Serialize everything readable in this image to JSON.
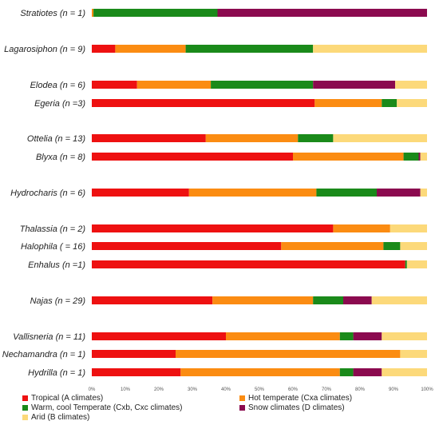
{
  "chart_data": {
    "type": "bar",
    "orientation": "horizontal",
    "stacked": true,
    "categories": [
      "Stratiotes (n = 1)",
      "Lagarosiphon (n = 9)",
      "Elodea (n = 6)",
      "Egeria (n =3)",
      "Ottelia (n = 13)",
      "Blyxa (n = 8)",
      "Hydrocharis (n = 6)",
      "Thalassia (n = 2)",
      "Halophila ( = 16)",
      "Enhalus (n =1)",
      "Najas (n = 29)",
      "Vallisneria (n = 11)",
      "Nechamandra (n = 1)",
      "Hydrilla (n = 1)"
    ],
    "series": [
      {
        "name": "Tropical (A climates)",
        "color": "#ee1111",
        "values": [
          0,
          7,
          13.5,
          66.5,
          34,
          60,
          29,
          72,
          56.5,
          93.5,
          36,
          40,
          25,
          26.5
        ]
      },
      {
        "name": "Hot temperate (Cxa climates)",
        "color": "#fb8c12",
        "values": [
          0.5,
          21,
          22,
          20,
          27.5,
          33,
          38,
          17,
          30.5,
          0,
          30,
          34,
          67,
          47.5
        ]
      },
      {
        "name": "Warm, cool Temperate (Cxb, Cxc climates)",
        "color": "#1a8a1a",
        "values": [
          37,
          38,
          30.5,
          4.5,
          10.5,
          4.5,
          18,
          0,
          5,
          0.5,
          9,
          4,
          0,
          4
        ]
      },
      {
        "name": "Snow climates (D climates)",
        "color": "#8b0a4f",
        "values": [
          62.5,
          0,
          24.5,
          0,
          0,
          0.5,
          13,
          0,
          0,
          0,
          8.5,
          8.5,
          0,
          8.5
        ]
      },
      {
        "name": "Arid (B climates)",
        "color": "#fcd97a",
        "values": [
          0,
          34,
          9.5,
          9,
          28,
          2,
          2,
          11,
          8,
          6,
          16.5,
          13.5,
          8,
          13.5
        ]
      }
    ],
    "xlim": [
      0,
      100
    ],
    "xticks": [
      "0%",
      "10%",
      "20%",
      "30%",
      "40%",
      "50%",
      "60%",
      "70%",
      "80%",
      "90%",
      "100%"
    ],
    "grid": false,
    "legend_position": "bottom"
  }
}
